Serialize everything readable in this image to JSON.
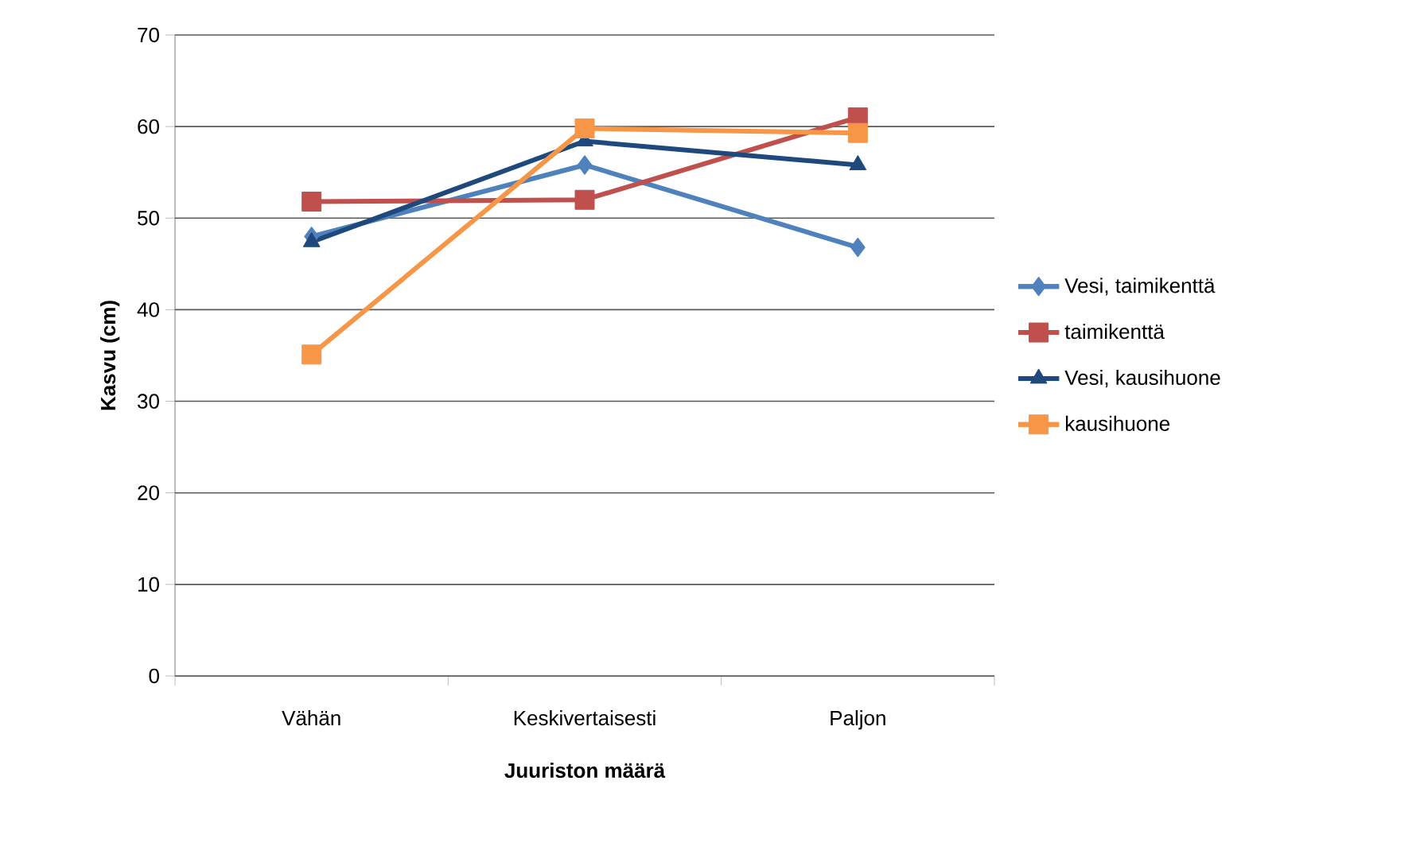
{
  "chart_data": {
    "type": "line",
    "xlabel": "Juuriston määrä",
    "ylabel": "Kasvu (cm)",
    "categories": [
      "Vähän",
      "Keskivertaisesti",
      "Paljon"
    ],
    "series": [
      {
        "name": "Vesi, taimikenttä",
        "color": "#4f81bd",
        "marker": "diamond",
        "values": [
          48,
          55.8,
          46.8
        ]
      },
      {
        "name": "taimikenttä",
        "color": "#c0504d",
        "marker": "square",
        "values": [
          51.8,
          52,
          61
        ]
      },
      {
        "name": "Vesi, kausihuone",
        "color": "#1f497d",
        "marker": "triangle",
        "values": [
          47.4,
          58.4,
          55.8
        ]
      },
      {
        "name": "kausihuone",
        "color": "#f79646",
        "marker": "square",
        "values": [
          35.1,
          59.8,
          59.3
        ]
      }
    ],
    "ylim": [
      0,
      70
    ],
    "yticks": [
      0,
      10,
      20,
      30,
      40,
      50,
      60,
      70
    ],
    "grid": "y",
    "legend": "right",
    "line_style": "solid"
  }
}
